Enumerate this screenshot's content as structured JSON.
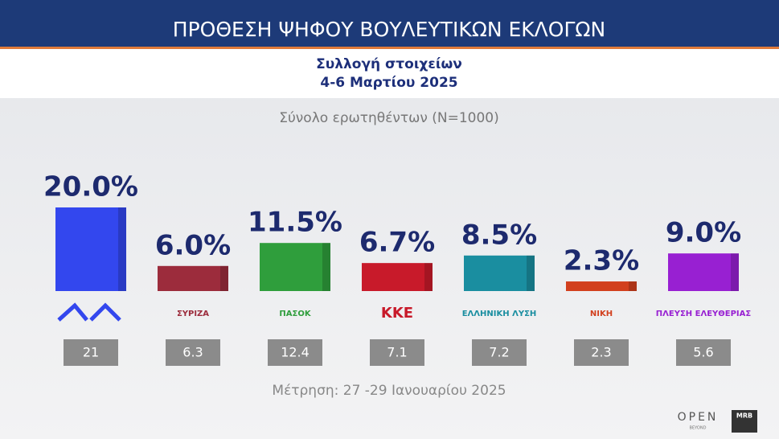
{
  "chart_data": {
    "type": "bar",
    "title": "ΠΡΟΘΕΣΗ ΨΗΦΟΥ ΒΟΥΛΕΥΤΙΚΩΝ ΕΚΛΟΓΩΝ",
    "subtitle": [
      "Συλλογή στοιχείων",
      "4-6 Μαρτίου 2025"
    ],
    "note": "Σύνολο ερωτηθέντων (N=1000)",
    "categories": [
      null,
      "ΣΥΡΙΖΑ",
      "ΠΑΣΟΚ",
      "ΚΚΕ",
      "ΕΛΛΗΝΙΚΗ ΛΥΣΗ",
      "ΝΙΚΗ",
      "ΠΛΕΥΣΗ ΕΛΕΥΘΕΡΙΑΣ"
    ],
    "values": [
      20.0,
      6.0,
      11.5,
      6.7,
      8.5,
      2.3,
      9.0
    ],
    "value_labels": [
      "20.0%",
      "6.0%",
      "11.5%",
      "6.7%",
      "8.5%",
      "2.3%",
      "9.0%"
    ],
    "colors": [
      "#3347ee",
      "#9c2c3c",
      "#2f9e3c",
      "#c81a2a",
      "#1a8ea0",
      "#d2401e",
      "#9820d2"
    ],
    "comparison": {
      "label": "Μέτρηση: 27 -29 Ιανουαρίου 2025",
      "values": [
        21,
        6.3,
        12.4,
        7.1,
        7.2,
        2.3,
        5.6
      ]
    },
    "brand": [
      "OPEN",
      "BEYOND",
      "MRB"
    ]
  }
}
